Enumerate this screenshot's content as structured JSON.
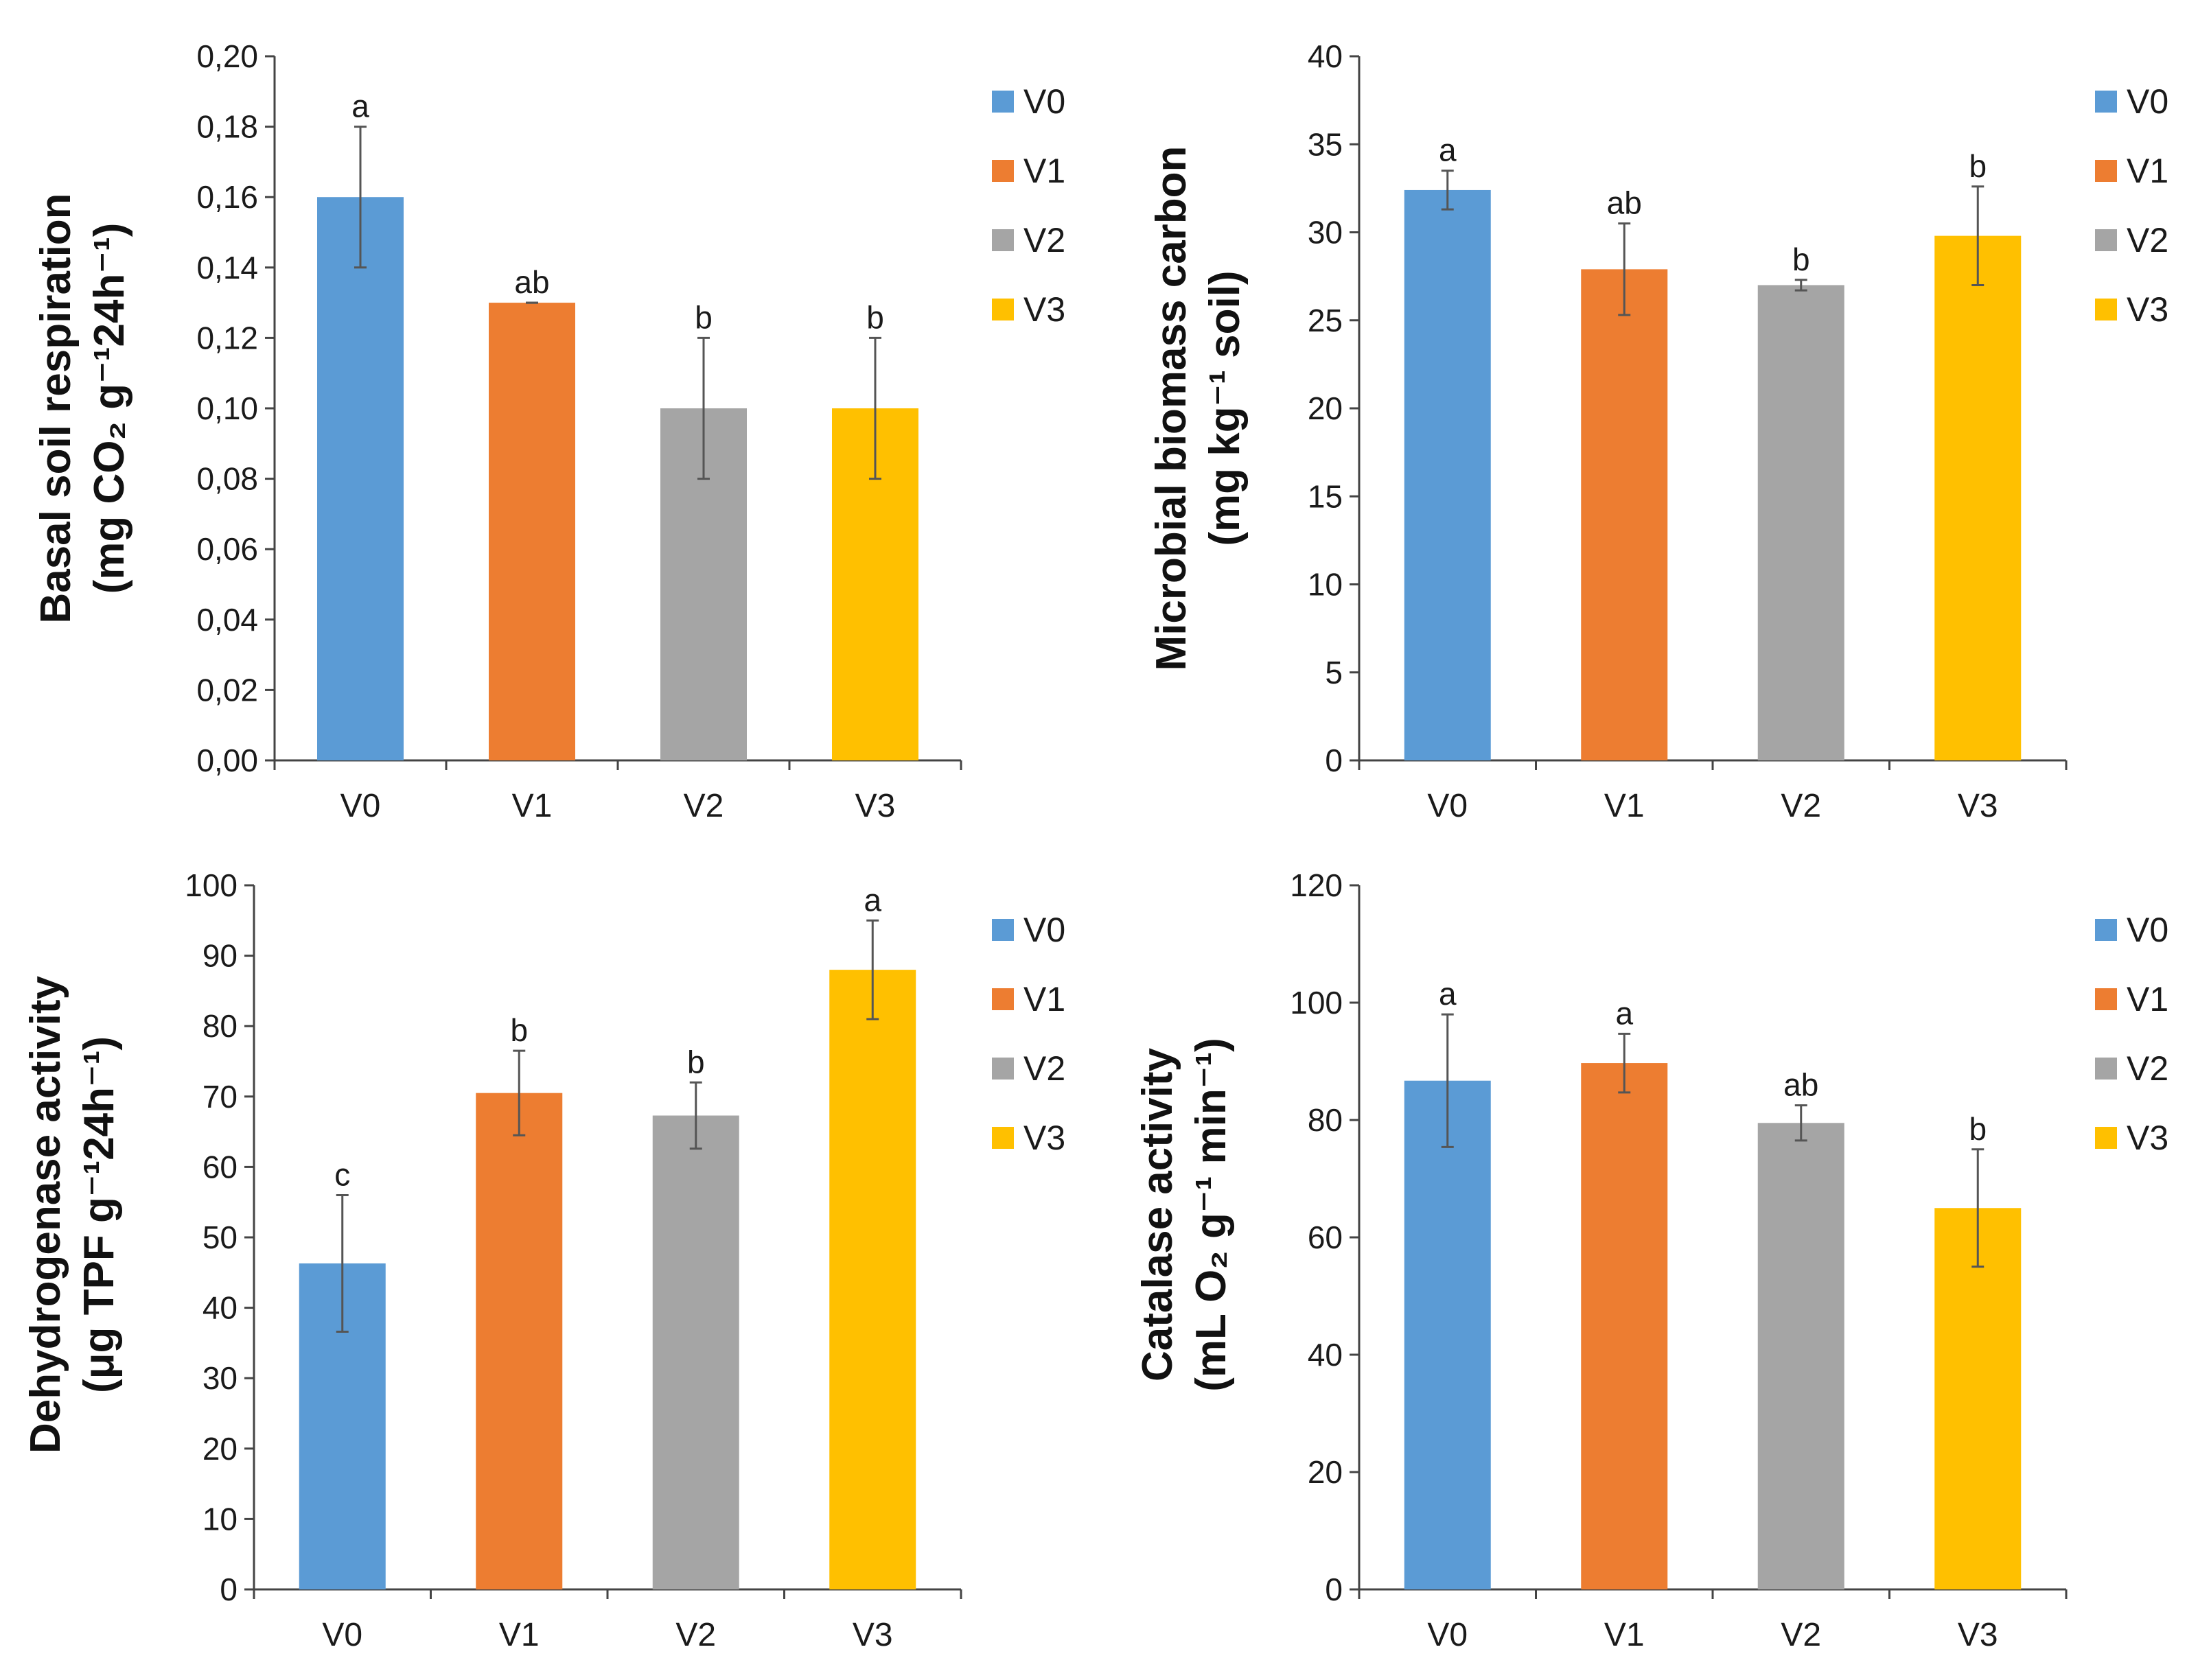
{
  "chart_data": [
    {
      "type": "bar",
      "categories": [
        "V0",
        "V1",
        "V2",
        "V3"
      ],
      "values": [
        0.16,
        0.13,
        0.1,
        0.1
      ],
      "errors": [
        0.02,
        0.0,
        0.02,
        0.02
      ],
      "significance": [
        "a",
        "ab",
        "b",
        "b"
      ],
      "ylim": [
        0,
        0.2
      ],
      "yticks": [
        "0,00",
        "0,02",
        "0,04",
        "0,06",
        "0,08",
        "0,10",
        "0,12",
        "0,14",
        "0,16",
        "0,18",
        "0,20"
      ],
      "ylabel_line1": "Basal soil respiration",
      "ylabel_line2": "(mg CO₂ g⁻¹24h⁻¹)",
      "legend": [
        "V0",
        "V1",
        "V2",
        "V3"
      ],
      "legend_position": "right"
    },
    {
      "type": "bar",
      "categories": [
        "V0",
        "V1",
        "V2",
        "V3"
      ],
      "values": [
        32.4,
        27.9,
        27.0,
        29.8
      ],
      "errors": [
        1.1,
        2.6,
        0.3,
        2.8
      ],
      "significance": [
        "a",
        "ab",
        "b",
        "b"
      ],
      "ylim": [
        0,
        40
      ],
      "yticks": [
        "0",
        "5",
        "10",
        "15",
        "20",
        "25",
        "30",
        "35",
        "40"
      ],
      "ylabel_line1": "Microbial biomass carbon",
      "ylabel_line2": "(mg kg⁻¹ soil)",
      "legend": [
        "V0",
        "V1",
        "V2",
        "V3"
      ],
      "legend_position": "right"
    },
    {
      "type": "bar",
      "categories": [
        "V0",
        "V1",
        "V2",
        "V3"
      ],
      "values": [
        46.3,
        70.5,
        67.3,
        88.0
      ],
      "errors": [
        9.7,
        6.0,
        4.7,
        7.0
      ],
      "significance": [
        "c",
        "b",
        "b",
        "a"
      ],
      "ylim": [
        0,
        100
      ],
      "yticks": [
        "0",
        "10",
        "20",
        "30",
        "40",
        "50",
        "60",
        "70",
        "80",
        "90",
        "100"
      ],
      "ylabel_line1": "Dehydrogenase activity",
      "ylabel_line2": "(μg TPF g⁻¹24h⁻¹)",
      "legend": [
        "V0",
        "V1",
        "V2",
        "V3"
      ],
      "legend_position": "right"
    },
    {
      "type": "bar",
      "categories": [
        "V0",
        "V1",
        "V2",
        "V3"
      ],
      "values": [
        86.7,
        89.7,
        79.5,
        65.0
      ],
      "errors": [
        11.3,
        5.0,
        3.0,
        10.0
      ],
      "significance": [
        "a",
        "a",
        "ab",
        "b"
      ],
      "ylim": [
        0,
        120
      ],
      "yticks": [
        "0",
        "20",
        "40",
        "60",
        "80",
        "100",
        "120"
      ],
      "ylabel_line1": "Catalase activity",
      "ylabel_line2": "(mL O₂ g⁻¹ min⁻¹)",
      "legend": [
        "V0",
        "V1",
        "V2",
        "V3"
      ],
      "legend_position": "right"
    }
  ],
  "colors": {
    "V0": "#5b9bd5",
    "V1": "#ed7d31",
    "V2": "#a5a5a5",
    "V3": "#ffc000"
  }
}
